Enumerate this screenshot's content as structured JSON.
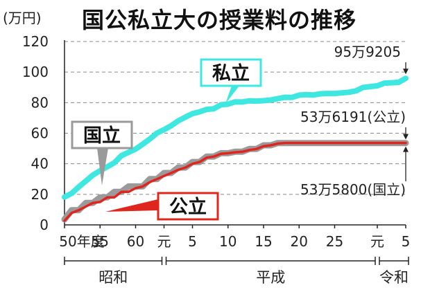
{
  "title": "国公私立大の授業料の推移",
  "unit": "(万円)",
  "chart_data": {
    "type": "line",
    "title": "国公私立大の授業料の推移",
    "ylabel": "(万円)",
    "ylim": [
      0,
      120
    ],
    "yticks": [
      "0",
      "20",
      "40",
      "60",
      "80",
      "100",
      "120"
    ],
    "xticks": [
      "50年度",
      "55",
      "60",
      "元",
      "5",
      "10",
      "15",
      "20",
      "25",
      "元",
      "5"
    ],
    "eras": [
      "昭和",
      "平成",
      "令和"
    ],
    "x": [
      "昭和50",
      "51",
      "52",
      "53",
      "54",
      "55",
      "56",
      "57",
      "58",
      "59",
      "60",
      "61",
      "62",
      "63",
      "平成元",
      "2",
      "3",
      "4",
      "5",
      "6",
      "7",
      "8",
      "9",
      "10",
      "11",
      "12",
      "13",
      "14",
      "15",
      "16",
      "17",
      "18",
      "19",
      "20",
      "21",
      "22",
      "23",
      "24",
      "25",
      "26",
      "27",
      "28",
      "29",
      "30",
      "令和元",
      "2",
      "3",
      "4",
      "5"
    ],
    "series": [
      {
        "name": "私立",
        "color": "#3ee8e0",
        "values": [
          18.2,
          20.6,
          24.8,
          28.7,
          32.6,
          35.5,
          38.0,
          40.6,
          45.3,
          47.5,
          49.6,
          52.8,
          56.2,
          60.1,
          62.3,
          64.9,
          68.1,
          70.5,
          72.8,
          74.0,
          75.6,
          76.0,
          78.6,
          79.0,
          80.5,
          80.4,
          81.2,
          81.0,
          81.3,
          81.7,
          82.6,
          83.5,
          83.4,
          84.9,
          85.2,
          85.0,
          85.8,
          86.0,
          86.0,
          86.4,
          86.8,
          87.7,
          90.0,
          90.5,
          91.0,
          92.8,
          93.0,
          93.3,
          95.9
        ]
      },
      {
        "name": "国立",
        "color": "#9a9a9a",
        "values": [
          3.6,
          9.6,
          9.6,
          14.4,
          14.4,
          18.0,
          18.0,
          21.6,
          21.6,
          25.2,
          25.2,
          25.2,
          30.0,
          30.0,
          33.96,
          33.96,
          37.56,
          37.56,
          41.16,
          41.16,
          44.76,
          44.76,
          46.92,
          46.92,
          47.88,
          47.88,
          49.68,
          49.68,
          52.08,
          52.08,
          53.58,
          53.58,
          53.58,
          53.58,
          53.58,
          53.58,
          53.58,
          53.58,
          53.58,
          53.58,
          53.58,
          53.58,
          53.58,
          53.58,
          53.58,
          53.58,
          53.58,
          53.58,
          53.58
        ]
      },
      {
        "name": "公立",
        "color": "#e0251e",
        "values": [
          2.7,
          7.8,
          9.6,
          12.0,
          14.4,
          15.0,
          18.0,
          18.0,
          21.6,
          21.6,
          24.0,
          25.2,
          28.0,
          30.0,
          32.0,
          33.96,
          36.0,
          37.56,
          40.0,
          41.16,
          44.0,
          44.76,
          46.5,
          46.92,
          47.5,
          47.88,
          49.0,
          49.68,
          51.5,
          52.08,
          53.2,
          53.6,
          53.6,
          53.6,
          53.6,
          53.6,
          53.6,
          53.6,
          53.6,
          53.6,
          53.6,
          53.6,
          53.6,
          53.6,
          53.6,
          53.6,
          53.6,
          53.6,
          53.6
        ]
      }
    ],
    "annotations": {
      "private_end": "95万9205",
      "public_end": "53万6191(公立)",
      "national_end": "53万5800(国立)"
    },
    "grid": true
  },
  "labels": {
    "private": "私立",
    "national": "国立",
    "public": "公立"
  }
}
